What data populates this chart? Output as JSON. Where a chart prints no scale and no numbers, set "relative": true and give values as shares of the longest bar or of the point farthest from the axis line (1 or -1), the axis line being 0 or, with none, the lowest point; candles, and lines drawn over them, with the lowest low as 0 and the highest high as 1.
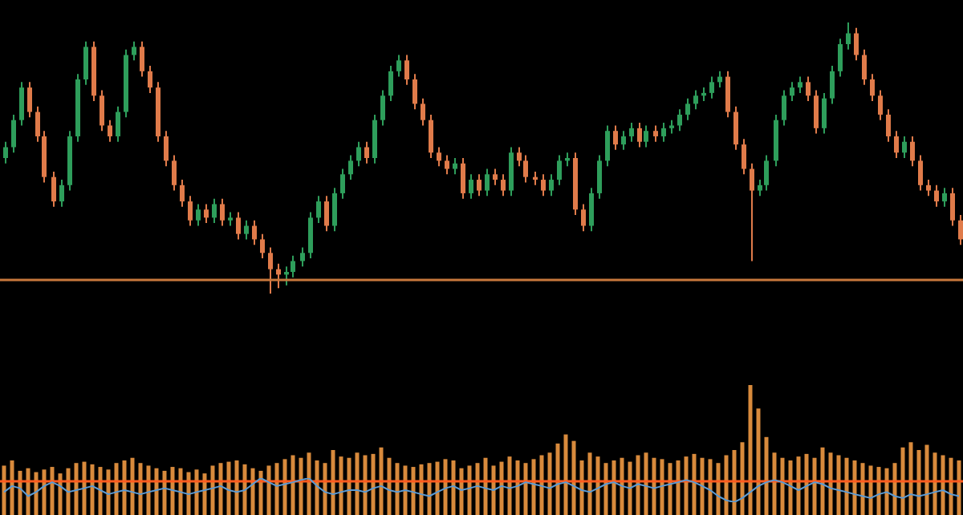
{
  "chart_data": [
    {
      "type": "candlestick",
      "relative": true,
      "legend": false,
      "categories": [
        null,
        null,
        null,
        null,
        null,
        null,
        null,
        null,
        null,
        null,
        null,
        null,
        null,
        null,
        null,
        null,
        null,
        null,
        null,
        null,
        null,
        null,
        null,
        null,
        null,
        null,
        null,
        null,
        null,
        null,
        null,
        null,
        null,
        null,
        null,
        null,
        null,
        null,
        null,
        null,
        null,
        null,
        null,
        null,
        null,
        null,
        null,
        null,
        null,
        null,
        null,
        null,
        null,
        null,
        null,
        null,
        null,
        null,
        null,
        null,
        null,
        null,
        null,
        null,
        null,
        null,
        null,
        null,
        null,
        null,
        null,
        null,
        null,
        null,
        null,
        null,
        null,
        null,
        null,
        null,
        null,
        null,
        null,
        null,
        null,
        null,
        null,
        null,
        null,
        null,
        null,
        null,
        null,
        null,
        null,
        null,
        null,
        null,
        null,
        null,
        null,
        null,
        null,
        null,
        null,
        null,
        null,
        null,
        null,
        null,
        null,
        null,
        null,
        null,
        null,
        null,
        null,
        null,
        null,
        null
      ],
      "ohlc": [
        [
          0.5,
          0.56,
          0.48,
          0.54
        ],
        [
          0.54,
          0.66,
          0.52,
          0.64
        ],
        [
          0.64,
          0.78,
          0.62,
          0.76
        ],
        [
          0.76,
          0.78,
          0.65,
          0.67
        ],
        [
          0.67,
          0.69,
          0.56,
          0.58
        ],
        [
          0.58,
          0.6,
          0.41,
          0.43
        ],
        [
          0.43,
          0.45,
          0.32,
          0.34
        ],
        [
          0.34,
          0.42,
          0.32,
          0.4
        ],
        [
          0.4,
          0.6,
          0.38,
          0.58
        ],
        [
          0.58,
          0.81,
          0.56,
          0.79
        ],
        [
          0.79,
          0.93,
          0.77,
          0.91
        ],
        [
          0.91,
          0.93,
          0.71,
          0.73
        ],
        [
          0.73,
          0.75,
          0.6,
          0.62
        ],
        [
          0.62,
          0.64,
          0.56,
          0.58
        ],
        [
          0.58,
          0.69,
          0.56,
          0.67
        ],
        [
          0.67,
          0.9,
          0.65,
          0.88
        ],
        [
          0.88,
          0.93,
          0.86,
          0.91
        ],
        [
          0.91,
          0.93,
          0.8,
          0.82
        ],
        [
          0.82,
          0.84,
          0.74,
          0.76
        ],
        [
          0.76,
          0.78,
          0.56,
          0.58
        ],
        [
          0.58,
          0.6,
          0.47,
          0.49
        ],
        [
          0.49,
          0.51,
          0.38,
          0.4
        ],
        [
          0.4,
          0.42,
          0.32,
          0.34
        ],
        [
          0.34,
          0.36,
          0.25,
          0.27
        ],
        [
          0.27,
          0.33,
          0.25,
          0.31
        ],
        [
          0.31,
          0.33,
          0.26,
          0.28
        ],
        [
          0.28,
          0.35,
          0.26,
          0.33
        ],
        [
          0.33,
          0.35,
          0.25,
          0.27
        ],
        [
          0.27,
          0.3,
          0.25,
          0.28
        ],
        [
          0.28,
          0.3,
          0.2,
          0.22
        ],
        [
          0.22,
          0.27,
          0.2,
          0.25
        ],
        [
          0.25,
          0.27,
          0.18,
          0.2
        ],
        [
          0.2,
          0.22,
          0.13,
          0.15
        ],
        [
          0.15,
          0.17,
          0.0,
          0.09
        ],
        [
          0.09,
          0.11,
          0.02,
          0.07
        ],
        [
          0.07,
          0.1,
          0.03,
          0.08
        ],
        [
          0.08,
          0.14,
          0.06,
          0.12
        ],
        [
          0.12,
          0.17,
          0.1,
          0.15
        ],
        [
          0.15,
          0.3,
          0.13,
          0.28
        ],
        [
          0.28,
          0.36,
          0.26,
          0.34
        ],
        [
          0.34,
          0.36,
          0.23,
          0.25
        ],
        [
          0.25,
          0.39,
          0.23,
          0.37
        ],
        [
          0.37,
          0.46,
          0.35,
          0.44
        ],
        [
          0.44,
          0.51,
          0.42,
          0.49
        ],
        [
          0.49,
          0.56,
          0.47,
          0.54
        ],
        [
          0.54,
          0.56,
          0.48,
          0.5
        ],
        [
          0.5,
          0.66,
          0.48,
          0.64
        ],
        [
          0.64,
          0.75,
          0.62,
          0.73
        ],
        [
          0.73,
          0.84,
          0.71,
          0.82
        ],
        [
          0.82,
          0.88,
          0.8,
          0.86
        ],
        [
          0.86,
          0.88,
          0.77,
          0.79
        ],
        [
          0.79,
          0.81,
          0.68,
          0.7
        ],
        [
          0.7,
          0.72,
          0.62,
          0.64
        ],
        [
          0.64,
          0.66,
          0.5,
          0.52
        ],
        [
          0.52,
          0.54,
          0.47,
          0.49
        ],
        [
          0.49,
          0.51,
          0.44,
          0.46
        ],
        [
          0.46,
          0.5,
          0.44,
          0.48
        ],
        [
          0.48,
          0.5,
          0.35,
          0.37
        ],
        [
          0.37,
          0.44,
          0.35,
          0.42
        ],
        [
          0.42,
          0.44,
          0.36,
          0.38
        ],
        [
          0.38,
          0.46,
          0.36,
          0.44
        ],
        [
          0.44,
          0.46,
          0.4,
          0.42
        ],
        [
          0.42,
          0.44,
          0.36,
          0.38
        ],
        [
          0.38,
          0.54,
          0.36,
          0.52
        ],
        [
          0.52,
          0.54,
          0.47,
          0.49
        ],
        [
          0.49,
          0.51,
          0.41,
          0.43
        ],
        [
          0.43,
          0.45,
          0.4,
          0.42
        ],
        [
          0.42,
          0.44,
          0.36,
          0.38
        ],
        [
          0.38,
          0.44,
          0.36,
          0.42
        ],
        [
          0.42,
          0.51,
          0.4,
          0.49
        ],
        [
          0.49,
          0.52,
          0.47,
          0.5
        ],
        [
          0.5,
          0.52,
          0.29,
          0.31
        ],
        [
          0.31,
          0.33,
          0.23,
          0.25
        ],
        [
          0.25,
          0.39,
          0.23,
          0.37
        ],
        [
          0.37,
          0.51,
          0.35,
          0.49
        ],
        [
          0.49,
          0.62,
          0.47,
          0.6
        ],
        [
          0.6,
          0.62,
          0.53,
          0.55
        ],
        [
          0.55,
          0.6,
          0.53,
          0.58
        ],
        [
          0.58,
          0.63,
          0.56,
          0.61
        ],
        [
          0.61,
          0.63,
          0.54,
          0.56
        ],
        [
          0.56,
          0.62,
          0.54,
          0.6
        ],
        [
          0.6,
          0.62,
          0.56,
          0.58
        ],
        [
          0.58,
          0.63,
          0.56,
          0.61
        ],
        [
          0.61,
          0.64,
          0.59,
          0.62
        ],
        [
          0.62,
          0.68,
          0.6,
          0.66
        ],
        [
          0.66,
          0.72,
          0.64,
          0.7
        ],
        [
          0.7,
          0.75,
          0.68,
          0.73
        ],
        [
          0.73,
          0.76,
          0.71,
          0.74
        ],
        [
          0.74,
          0.8,
          0.72,
          0.78
        ],
        [
          0.78,
          0.82,
          0.76,
          0.8
        ],
        [
          0.8,
          0.82,
          0.65,
          0.67
        ],
        [
          0.67,
          0.69,
          0.53,
          0.55
        ],
        [
          0.55,
          0.57,
          0.44,
          0.46
        ],
        [
          0.46,
          0.48,
          0.12,
          0.38
        ],
        [
          0.38,
          0.42,
          0.36,
          0.4
        ],
        [
          0.4,
          0.51,
          0.38,
          0.49
        ],
        [
          0.49,
          0.66,
          0.47,
          0.64
        ],
        [
          0.64,
          0.75,
          0.62,
          0.73
        ],
        [
          0.73,
          0.78,
          0.71,
          0.76
        ],
        [
          0.76,
          0.8,
          0.74,
          0.78
        ],
        [
          0.78,
          0.8,
          0.71,
          0.73
        ],
        [
          0.73,
          0.75,
          0.59,
          0.61
        ],
        [
          0.61,
          0.74,
          0.59,
          0.72
        ],
        [
          0.72,
          0.84,
          0.7,
          0.82
        ],
        [
          0.82,
          0.94,
          0.8,
          0.92
        ],
        [
          0.92,
          1.0,
          0.9,
          0.96
        ],
        [
          0.96,
          0.98,
          0.86,
          0.88
        ],
        [
          0.88,
          0.9,
          0.77,
          0.79
        ],
        [
          0.79,
          0.81,
          0.71,
          0.73
        ],
        [
          0.73,
          0.75,
          0.64,
          0.66
        ],
        [
          0.66,
          0.68,
          0.56,
          0.58
        ],
        [
          0.58,
          0.6,
          0.5,
          0.52
        ],
        [
          0.52,
          0.58,
          0.5,
          0.56
        ],
        [
          0.56,
          0.58,
          0.47,
          0.49
        ],
        [
          0.49,
          0.51,
          0.38,
          0.4
        ],
        [
          0.4,
          0.42,
          0.36,
          0.38
        ],
        [
          0.38,
          0.4,
          0.32,
          0.34
        ],
        [
          0.34,
          0.39,
          0.32,
          0.37
        ],
        [
          0.37,
          0.39,
          0.25,
          0.27
        ],
        [
          0.27,
          0.29,
          0.18,
          0.2
        ]
      ],
      "ref_lines": [
        {
          "axis": "y",
          "value": 0.05,
          "color": "#c8783c"
        }
      ]
    },
    {
      "type": "bar",
      "relative": true,
      "legend": false,
      "categories": [
        null,
        null,
        null,
        null,
        null,
        null,
        null,
        null,
        null,
        null,
        null,
        null,
        null,
        null,
        null,
        null,
        null,
        null,
        null,
        null,
        null,
        null,
        null,
        null,
        null,
        null,
        null,
        null,
        null,
        null,
        null,
        null,
        null,
        null,
        null,
        null,
        null,
        null,
        null,
        null,
        null,
        null,
        null,
        null,
        null,
        null,
        null,
        null,
        null,
        null,
        null,
        null,
        null,
        null,
        null,
        null,
        null,
        null,
        null,
        null,
        null,
        null,
        null,
        null,
        null,
        null,
        null,
        null,
        null,
        null,
        null,
        null,
        null,
        null,
        null,
        null,
        null,
        null,
        null,
        null,
        null,
        null,
        null,
        null,
        null,
        null,
        null,
        null,
        null,
        null,
        null,
        null,
        null,
        null,
        null,
        null,
        null,
        null,
        null,
        null,
        null,
        null,
        null,
        null,
        null,
        null,
        null,
        null,
        null,
        null,
        null,
        null,
        null,
        null,
        null,
        null,
        null,
        null,
        null,
        null
      ],
      "series": [
        {
          "color": "#d88a3c",
          "values": [
            0.38,
            0.42,
            0.34,
            0.36,
            0.33,
            0.35,
            0.37,
            0.32,
            0.36,
            0.4,
            0.41,
            0.39,
            0.37,
            0.35,
            0.4,
            0.42,
            0.44,
            0.4,
            0.38,
            0.36,
            0.34,
            0.37,
            0.36,
            0.33,
            0.35,
            0.32,
            0.38,
            0.4,
            0.41,
            0.42,
            0.39,
            0.36,
            0.34,
            0.38,
            0.4,
            0.43,
            0.46,
            0.44,
            0.48,
            0.42,
            0.4,
            0.5,
            0.45,
            0.44,
            0.48,
            0.46,
            0.47,
            0.52,
            0.44,
            0.4,
            0.38,
            0.37,
            0.39,
            0.4,
            0.41,
            0.43,
            0.42,
            0.36,
            0.38,
            0.4,
            0.44,
            0.38,
            0.41,
            0.45,
            0.42,
            0.4,
            0.43,
            0.46,
            0.48,
            0.55,
            0.62,
            0.57,
            0.42,
            0.48,
            0.45,
            0.4,
            0.42,
            0.44,
            0.41,
            0.46,
            0.48,
            0.44,
            0.43,
            0.4,
            0.42,
            0.45,
            0.47,
            0.44,
            0.43,
            0.4,
            0.46,
            0.5,
            0.56,
            1.0,
            0.82,
            0.6,
            0.48,
            0.44,
            0.42,
            0.45,
            0.47,
            0.44,
            0.52,
            0.48,
            0.46,
            0.44,
            0.42,
            0.4,
            0.38,
            0.37,
            0.36,
            0.4,
            0.52,
            0.56,
            0.5,
            0.54,
            0.48,
            0.46,
            0.44,
            0.42
          ]
        }
      ],
      "ref_lines": [
        {
          "axis": "y",
          "value": 0.26,
          "color": "#ff5a1e"
        }
      ]
    },
    {
      "type": "line",
      "relative": true,
      "legend": false,
      "categories": [
        null,
        null,
        null,
        null,
        null,
        null,
        null,
        null,
        null,
        null,
        null,
        null,
        null,
        null,
        null,
        null,
        null,
        null,
        null,
        null,
        null,
        null,
        null,
        null,
        null,
        null,
        null,
        null,
        null,
        null,
        null,
        null,
        null,
        null,
        null,
        null,
        null,
        null,
        null,
        null,
        null,
        null,
        null,
        null,
        null,
        null,
        null,
        null,
        null,
        null,
        null,
        null,
        null,
        null,
        null,
        null,
        null,
        null,
        null,
        null,
        null,
        null,
        null,
        null,
        null,
        null,
        null,
        null,
        null,
        null,
        null,
        null,
        null,
        null,
        null,
        null,
        null,
        null,
        null,
        null,
        null,
        null,
        null,
        null,
        null,
        null,
        null,
        null,
        null,
        null,
        null,
        null,
        null,
        null,
        null,
        null,
        null,
        null,
        null,
        null,
        null,
        null,
        null,
        null,
        null,
        null,
        null,
        null,
        null,
        null,
        null,
        null,
        null,
        null,
        null,
        null,
        null,
        null,
        null,
        null
      ],
      "series": [
        {
          "color": "#5b9bd5",
          "values": [
            0.42,
            0.67,
            0.58,
            0.25,
            0.42,
            0.67,
            0.83,
            0.67,
            0.42,
            0.5,
            0.58,
            0.67,
            0.5,
            0.33,
            0.42,
            0.5,
            0.42,
            0.33,
            0.42,
            0.5,
            0.58,
            0.5,
            0.42,
            0.33,
            0.42,
            0.5,
            0.58,
            0.67,
            0.5,
            0.42,
            0.5,
            0.75,
            1,
            0.83,
            0.67,
            0.75,
            0.83,
            0.92,
            1,
            0.67,
            0.42,
            0.33,
            0.42,
            0.5,
            0.5,
            0.42,
            0.58,
            0.67,
            0.5,
            0.42,
            0.5,
            0.42,
            0.33,
            0.25,
            0.42,
            0.58,
            0.67,
            0.5,
            0.58,
            0.67,
            0.58,
            0.5,
            0.67,
            0.58,
            0.67,
            0.83,
            0.75,
            0.67,
            0.58,
            0.75,
            0.83,
            0.67,
            0.5,
            0.42,
            0.58,
            0.75,
            0.83,
            0.67,
            0.58,
            0.75,
            0.67,
            0.58,
            0.67,
            0.75,
            0.83,
            0.92,
            0.83,
            0.67,
            0.5,
            0.25,
            0.08,
            0,
            0.17,
            0.42,
            0.67,
            0.83,
            0.92,
            0.83,
            0.67,
            0.5,
            0.67,
            0.83,
            0.75,
            0.58,
            0.5,
            0.42,
            0.33,
            0.25,
            0.17,
            0.33,
            0.42,
            0.25,
            0.17,
            0.33,
            0.25,
            0.33,
            0.42,
            0.5,
            0.33,
            0.25
          ]
        }
      ]
    }
  ]
}
